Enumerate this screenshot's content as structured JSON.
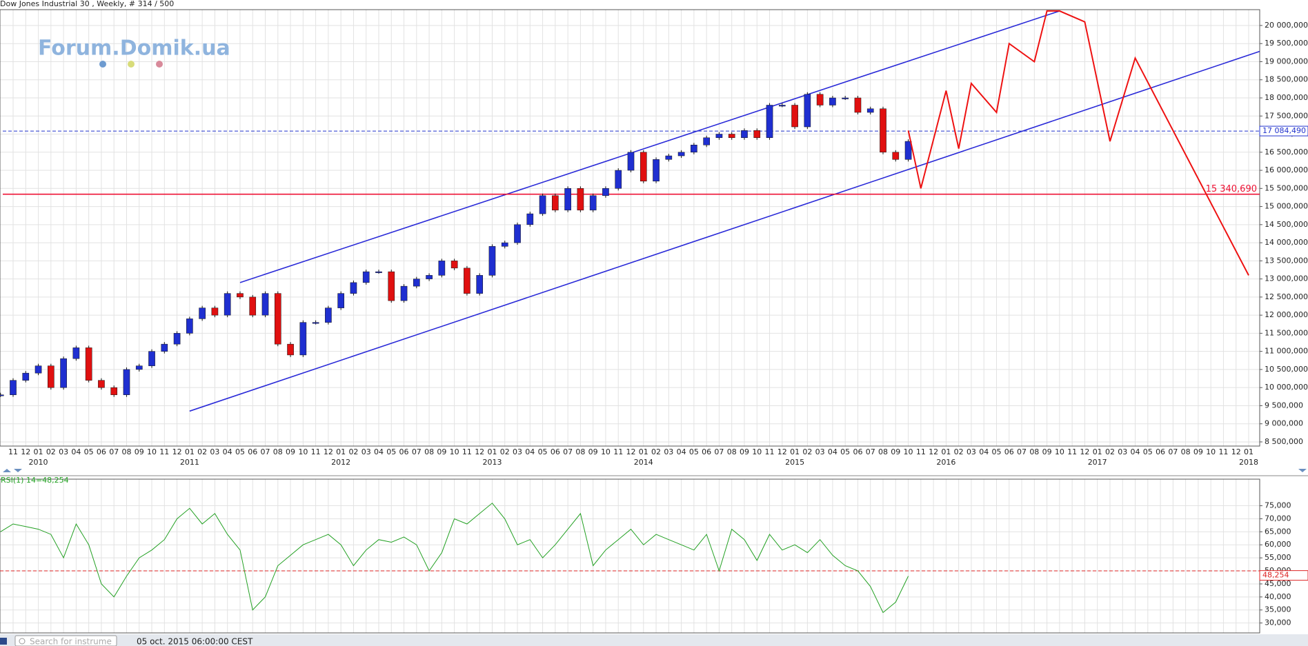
{
  "title": "Dow Jones Industrial 30 , Weekly, # 314 / 500",
  "logo": "Forum.Domik.ua",
  "search_placeholder": "Search for instrume",
  "status_time": "05 oct. 2015 06:00:00 CEST",
  "chart_data": [
    {
      "type": "candlestick",
      "up_color": "#1f2fd0",
      "down_color": "#e01010",
      "xlim": [
        "2009-11",
        "2018-01"
      ],
      "month_labels": [
        "11",
        "12",
        "01",
        "02",
        "03",
        "04",
        "05",
        "06",
        "07",
        "08",
        "09",
        "10",
        "11",
        "12",
        "01",
        "02",
        "03",
        "04",
        "05",
        "06",
        "07",
        "08",
        "09",
        "10",
        "11",
        "12",
        "01",
        "02",
        "03",
        "04",
        "05",
        "06",
        "07",
        "08",
        "09",
        "10",
        "11",
        "12",
        "01",
        "02",
        "03",
        "04",
        "05",
        "06",
        "07",
        "08",
        "09",
        "10",
        "11",
        "12",
        "01",
        "02",
        "03",
        "04",
        "05",
        "06",
        "07",
        "08",
        "09",
        "10",
        "11",
        "12",
        "01",
        "02",
        "03",
        "04",
        "05",
        "06",
        "07",
        "08",
        "09",
        "10",
        "11",
        "12",
        "01",
        "02",
        "03",
        "04",
        "05",
        "06",
        "07",
        "08",
        "09",
        "10",
        "11",
        "12",
        "01",
        "02",
        "03",
        "04",
        "05",
        "06",
        "07",
        "08",
        "09",
        "10",
        "11",
        "12",
        "01"
      ],
      "years": [
        "2010",
        "2011",
        "2012",
        "2013",
        "2014",
        "2015",
        "2016",
        "2017",
        "2018"
      ],
      "ylim": [
        8385000,
        20437000
      ],
      "yticks": [
        {
          "value": 8500000,
          "label": "8 500,000"
        },
        {
          "value": 9000000,
          "label": "9 000,000"
        },
        {
          "value": 9500000,
          "label": "9 500,000"
        },
        {
          "value": 10000000,
          "label": "10 000,000"
        },
        {
          "value": 10500000,
          "label": "10 500,000"
        },
        {
          "value": 11000000,
          "label": "11 000,000"
        },
        {
          "value": 11500000,
          "label": "11 500,000"
        },
        {
          "value": 12000000,
          "label": "12 000,000"
        },
        {
          "value": 12500000,
          "label": "12 500,000"
        },
        {
          "value": 13000000,
          "label": "13 000,000"
        },
        {
          "value": 13500000,
          "label": "13 500,000"
        },
        {
          "value": 14000000,
          "label": "14 000,000"
        },
        {
          "value": 14500000,
          "label": "14 500,000"
        },
        {
          "value": 15000000,
          "label": "15 000,000"
        },
        {
          "value": 15500000,
          "label": "15 500,000"
        },
        {
          "value": 16000000,
          "label": "16 000,000"
        },
        {
          "value": 16500000,
          "label": "16 500,000"
        },
        {
          "value": 17000000,
          "label": "17 000,000"
        },
        {
          "value": 17500000,
          "label": "17 500,000"
        },
        {
          "value": 18000000,
          "label": "18 000,000"
        },
        {
          "value": 18500000,
          "label": "18 500,000"
        },
        {
          "value": 19000000,
          "label": "19 000,000"
        },
        {
          "value": 19500000,
          "label": "19 500,000"
        },
        {
          "value": 20000000,
          "label": "20 000,000"
        }
      ],
      "grid": true,
      "candles": {
        "x": [
          "2009-10",
          "2009-11",
          "2009-12",
          "2010-01",
          "2010-02",
          "2010-03",
          "2010-04",
          "2010-05",
          "2010-06",
          "2010-07",
          "2010-08",
          "2010-09",
          "2010-10",
          "2010-11",
          "2010-12",
          "2011-01",
          "2011-02",
          "2011-03",
          "2011-04",
          "2011-05",
          "2011-06",
          "2011-07",
          "2011-08",
          "2011-09",
          "2011-10",
          "2011-11",
          "2011-12",
          "2012-01",
          "2012-02",
          "2012-03",
          "2012-04",
          "2012-05",
          "2012-06",
          "2012-07",
          "2012-08",
          "2012-09",
          "2012-10",
          "2012-11",
          "2012-12",
          "2013-01",
          "2013-02",
          "2013-03",
          "2013-04",
          "2013-05",
          "2013-06",
          "2013-07",
          "2013-08",
          "2013-09",
          "2013-10",
          "2013-11",
          "2013-12",
          "2014-01",
          "2014-02",
          "2014-03",
          "2014-04",
          "2014-05",
          "2014-06",
          "2014-07",
          "2014-08",
          "2014-09",
          "2014-10",
          "2014-11",
          "2014-12",
          "2015-01",
          "2015-02",
          "2015-03",
          "2015-04",
          "2015-05",
          "2015-06",
          "2015-07",
          "2015-08",
          "2015-09",
          "2015-10"
        ],
        "values": [
          9800000,
          10200000,
          10400000,
          10600000,
          10000000,
          10800000,
          11100000,
          10200000,
          10000000,
          9800000,
          10500000,
          10600000,
          11000000,
          11200000,
          11500000,
          11900000,
          12200000,
          12000000,
          12600000,
          12500000,
          12000000,
          12600000,
          11200000,
          10900000,
          11800000,
          11800000,
          12200000,
          12600000,
          12900000,
          13200000,
          13200000,
          12400000,
          12800000,
          13000000,
          13100000,
          13500000,
          13300000,
          12600000,
          13100000,
          13900000,
          14000000,
          14500000,
          14800000,
          15300000,
          14900000,
          15500000,
          14900000,
          15300000,
          15500000,
          16000000,
          16500000,
          15700000,
          16300000,
          16400000,
          16500000,
          16700000,
          16900000,
          17000000,
          16900000,
          17100000,
          16900000,
          17800000,
          17800000,
          17200000,
          18100000,
          17800000,
          18000000,
          18000000,
          17600000,
          17700000,
          16500000,
          16300000,
          16800000
        ]
      },
      "forecast": {
        "color": "#ee1111",
        "x": [
          "2015-10",
          "2015-11",
          "2016-01",
          "2016-02",
          "2016-03",
          "2016-05",
          "2016-06",
          "2016-08",
          "2016-09",
          "2016-10",
          "2016-12",
          "2017-02",
          "2017-04",
          "2018-01"
        ],
        "values": [
          17100000,
          15500000,
          18200000,
          16600000,
          18400000,
          17600000,
          19500000,
          19000000,
          20400000,
          20400000,
          20100000,
          16800000,
          19100000,
          13100000
        ]
      },
      "channel": [
        {
          "color": "#2a2ad8",
          "x": [
            "2011-05",
            "2016-10"
          ],
          "values": [
            12900000,
            20400000
          ]
        },
        {
          "color": "#2a2ad8",
          "x": [
            "2011-01",
            "2018-02"
          ],
          "values": [
            9350000,
            19300000
          ]
        }
      ],
      "hlines": [
        {
          "value": 17084490,
          "label": "17 084,490",
          "color": "#2233cc",
          "style": "dashed"
        },
        {
          "value": 15340690,
          "label": "15 340,690",
          "color": "#ee1133",
          "style": "solid"
        }
      ]
    },
    {
      "type": "line",
      "label": "RSI(1) 14=48,254",
      "color": "#22a022",
      "x": [
        "2009-10",
        "2009-11",
        "2009-12",
        "2010-01",
        "2010-02",
        "2010-03",
        "2010-04",
        "2010-05",
        "2010-06",
        "2010-07",
        "2010-08",
        "2010-09",
        "2010-10",
        "2010-11",
        "2010-12",
        "2011-01",
        "2011-02",
        "2011-03",
        "2011-04",
        "2011-05",
        "2011-06",
        "2011-07",
        "2011-08",
        "2011-09",
        "2011-10",
        "2011-11",
        "2011-12",
        "2012-01",
        "2012-02",
        "2012-03",
        "2012-04",
        "2012-05",
        "2012-06",
        "2012-07",
        "2012-08",
        "2012-09",
        "2012-10",
        "2012-11",
        "2012-12",
        "2013-01",
        "2013-02",
        "2013-03",
        "2013-04",
        "2013-05",
        "2013-06",
        "2013-07",
        "2013-08",
        "2013-09",
        "2013-10",
        "2013-11",
        "2013-12",
        "2014-01",
        "2014-02",
        "2014-03",
        "2014-04",
        "2014-05",
        "2014-06",
        "2014-07",
        "2014-08",
        "2014-09",
        "2014-10",
        "2014-11",
        "2014-12",
        "2015-01",
        "2015-02",
        "2015-03",
        "2015-04",
        "2015-05",
        "2015-06",
        "2015-07",
        "2015-08",
        "2015-09",
        "2015-10"
      ],
      "values": [
        65,
        68,
        67,
        66,
        64,
        55,
        68,
        60,
        45,
        40,
        48,
        55,
        58,
        62,
        70,
        74,
        68,
        72,
        64,
        58,
        35,
        40,
        52,
        56,
        60,
        62,
        64,
        60,
        52,
        58,
        62,
        61,
        63,
        60,
        50,
        57,
        70,
        68,
        72,
        76,
        70,
        60,
        62,
        55,
        60,
        66,
        72,
        52,
        58,
        62,
        66,
        60,
        64,
        62,
        60,
        58,
        64,
        50,
        66,
        62,
        54,
        64,
        58,
        60,
        57,
        62,
        56,
        52,
        50,
        44,
        34,
        38,
        48
      ],
      "ylim": [
        26.2,
        85.2
      ],
      "yticks": [
        {
          "value": 30,
          "label": "30,000"
        },
        {
          "value": 35,
          "label": "35,000"
        },
        {
          "value": 40,
          "label": "40,000"
        },
        {
          "value": 45,
          "label": "45,000"
        },
        {
          "value": 50,
          "label": "50,000"
        },
        {
          "value": 55,
          "label": "55,000"
        },
        {
          "value": 60,
          "label": "60,000"
        },
        {
          "value": 65,
          "label": "65,000"
        },
        {
          "value": 70,
          "label": "70,000"
        },
        {
          "value": 75,
          "label": "75,000"
        }
      ],
      "hline": {
        "value": 50,
        "color": "#dd2222"
      },
      "current": {
        "value": 48.254,
        "label": "48,254",
        "color": "#dd2222"
      }
    }
  ]
}
